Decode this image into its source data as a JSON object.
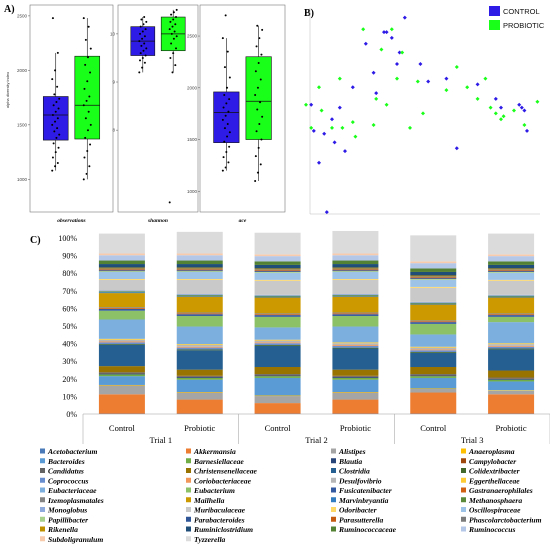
{
  "panel_labels": {
    "a": "A)",
    "b": "B)",
    "c": "C)"
  },
  "chart_data": [
    {
      "type": "box",
      "panel": "A",
      "ylabel": "alpha diversity index",
      "facets": [
        {
          "metric": "observations",
          "ylim": [
            700,
            2600
          ],
          "yticks": [
            1000,
            1500,
            2000,
            2500
          ],
          "groups": [
            {
              "name": "CONTROL",
              "color": "#2e1be6",
              "q1": 1360,
              "median": 1590,
              "q3": 1760,
              "whisker_low": 1080,
              "whisker_high": 2160,
              "points": [
                1080,
                1120,
                1150,
                1200,
                1250,
                1290,
                1330,
                1380,
                1410,
                1440,
                1470,
                1500,
                1530,
                1560,
                1590,
                1620,
                1650,
                1680,
                1710,
                1740,
                1780,
                1850,
                1920,
                2000,
                2160,
                2480
              ]
            },
            {
              "name": "PROBIOTIC",
              "color": "#1aff1a",
              "q1": 1370,
              "median": 1680,
              "q3": 2130,
              "whisker_low": 1000,
              "whisker_high": 2480,
              "points": [
                1000,
                1050,
                1120,
                1200,
                1260,
                1320,
                1380,
                1450,
                1500,
                1560,
                1620,
                1680,
                1720,
                1760,
                1830,
                1900,
                1980,
                2050,
                2120,
                2200,
                2280,
                2400,
                2480
              ]
            }
          ]
        },
        {
          "metric": "shannon",
          "ylim": [
            6.3,
            10.6
          ],
          "yticks": [
            8,
            9,
            10
          ],
          "groups": [
            {
              "name": "CONTROL",
              "color": "#2e1be6",
              "q1": 9.55,
              "median": 9.85,
              "q3": 10.15,
              "whisker_low": 9.2,
              "whisker_high": 10.35,
              "points": [
                9.2,
                9.3,
                9.4,
                9.45,
                9.5,
                9.55,
                9.6,
                9.65,
                9.7,
                9.75,
                9.8,
                9.85,
                9.9,
                9.95,
                10.0,
                10.05,
                10.1,
                10.15,
                10.2,
                10.25,
                10.3,
                10.35
              ]
            },
            {
              "name": "PROBIOTIC",
              "color": "#1aff1a",
              "q1": 9.65,
              "median": 10.0,
              "q3": 10.35,
              "whisker_low": 9.2,
              "whisker_high": 10.5,
              "points": [
                6.5,
                9.2,
                9.35,
                9.5,
                9.6,
                9.7,
                9.8,
                9.9,
                9.95,
                10.0,
                10.05,
                10.1,
                10.15,
                10.2,
                10.25,
                10.3,
                10.35,
                10.4,
                10.45,
                10.5
              ]
            }
          ]
        },
        {
          "metric": "ace",
          "ylim": [
            800,
            2800
          ],
          "yticks": [
            1000,
            1500,
            2000,
            2500
          ],
          "groups": [
            {
              "name": "CONTROL",
              "color": "#2e1be6",
              "q1": 1470,
              "median": 1760,
              "q3": 1960,
              "whisker_low": 1200,
              "whisker_high": 2480,
              "points": [
                1200,
                1230,
                1280,
                1330,
                1380,
                1430,
                1480,
                1530,
                1570,
                1610,
                1650,
                1690,
                1730,
                1770,
                1810,
                1850,
                1890,
                1930,
                2000,
                2100,
                2200,
                2350,
                2480,
                2700
              ]
            },
            {
              "name": "PROBIOTIC",
              "color": "#1aff1a",
              "q1": 1500,
              "median": 1870,
              "q3": 2300,
              "whisker_low": 1100,
              "whisker_high": 2600,
              "points": [
                1100,
                1180,
                1260,
                1340,
                1420,
                1500,
                1580,
                1650,
                1720,
                1790,
                1860,
                1930,
                2000,
                2080,
                2160,
                2240,
                2320,
                2400,
                2480,
                2560,
                2600
              ]
            }
          ]
        }
      ]
    },
    {
      "type": "scatter",
      "panel": "B",
      "xlim": [
        -0.4,
        0.5
      ],
      "ylim": [
        -0.4,
        0.32
      ],
      "legend": [
        {
          "name": "CONTROL",
          "color": "#2e1be6"
        },
        {
          "name": "PROBIOTIC",
          "color": "#1aff1a"
        }
      ],
      "series": [
        {
          "name": "CONTROL",
          "color": "#2e1be6",
          "marker": "diamond",
          "points": [
            [
              -0.38,
              -0.02
            ],
            [
              -0.37,
              -0.11
            ],
            [
              -0.35,
              -0.22
            ],
            [
              -0.33,
              -0.12
            ],
            [
              -0.32,
              -0.39
            ],
            [
              -0.3,
              -0.07
            ],
            [
              -0.29,
              -0.15
            ],
            [
              -0.27,
              -0.03
            ],
            [
              -0.25,
              -0.18
            ],
            [
              -0.22,
              0.04
            ],
            [
              -0.17,
              0.19
            ],
            [
              -0.14,
              0.09
            ],
            [
              -0.13,
              0.02
            ],
            [
              -0.1,
              0.23
            ],
            [
              -0.09,
              0.23
            ],
            [
              -0.07,
              0.21
            ],
            [
              -0.05,
              0.12
            ],
            [
              -0.04,
              0.16
            ],
            [
              -0.02,
              0.28
            ],
            [
              0.04,
              0.12
            ],
            [
              0.07,
              0.06
            ],
            [
              0.14,
              0.07
            ],
            [
              0.18,
              -0.17
            ],
            [
              0.26,
              0.05
            ],
            [
              0.33,
              0.0
            ],
            [
              0.35,
              -0.03
            ],
            [
              0.42,
              -0.02
            ],
            [
              0.43,
              -0.03
            ],
            [
              0.44,
              -0.04
            ],
            [
              0.45,
              -0.11
            ]
          ]
        },
        {
          "name": "PROBIOTIC",
          "color": "#1aff1a",
          "marker": "diamond",
          "points": [
            [
              -0.4,
              -0.02
            ],
            [
              -0.38,
              -0.1
            ],
            [
              -0.35,
              0.04
            ],
            [
              -0.34,
              -0.04
            ],
            [
              -0.3,
              -0.1
            ],
            [
              -0.27,
              0.07
            ],
            [
              -0.26,
              -0.1
            ],
            [
              -0.22,
              -0.08
            ],
            [
              -0.21,
              -0.13
            ],
            [
              -0.18,
              0.24
            ],
            [
              -0.14,
              -0.09
            ],
            [
              -0.13,
              0.0
            ],
            [
              -0.11,
              0.17
            ],
            [
              -0.09,
              -0.02
            ],
            [
              -0.07,
              0.24
            ],
            [
              -0.05,
              0.07
            ],
            [
              -0.03,
              0.16
            ],
            [
              0.0,
              -0.1
            ],
            [
              0.03,
              0.06
            ],
            [
              0.05,
              -0.05
            ],
            [
              0.14,
              0.03
            ],
            [
              0.18,
              0.11
            ],
            [
              0.22,
              0.04
            ],
            [
              0.26,
              0.0
            ],
            [
              0.29,
              0.07
            ],
            [
              0.31,
              -0.03
            ],
            [
              0.33,
              -0.05
            ],
            [
              0.35,
              -0.07
            ],
            [
              0.36,
              -0.06
            ],
            [
              0.4,
              -0.04
            ],
            [
              0.44,
              -0.09
            ],
            [
              0.49,
              -0.01
            ]
          ]
        }
      ]
    },
    {
      "type": "stacked_bar",
      "panel": "C",
      "ylim": [
        0,
        100
      ],
      "yticks": [
        "0%",
        "10%",
        "20%",
        "30%",
        "40%",
        "50%",
        "60%",
        "70%",
        "80%",
        "90%",
        "100%"
      ],
      "categories": [
        "Control",
        "Probiotic",
        "Control",
        "Probiotic",
        "Control",
        "Probiotic"
      ],
      "groups": [
        {
          "label": "Trial 1",
          "categories": [
            "Control",
            "Probiotic"
          ]
        },
        {
          "label": "Trial 2",
          "categories": [
            "Control",
            "Probiotic"
          ]
        },
        {
          "label": "Trial 3",
          "categories": [
            "Control",
            "Probiotic"
          ]
        }
      ],
      "series": [
        {
          "name": "Acetobacterium",
          "color": "#4a7ab8",
          "values": [
            0.2,
            0.2,
            0.2,
            0.2,
            0.2,
            0.2
          ]
        },
        {
          "name": "Akkermansia",
          "color": "#ed7d31",
          "values": [
            11,
            8,
            6,
            8,
            12,
            11
          ]
        },
        {
          "name": "Alistipes",
          "color": "#a5a5a5",
          "values": [
            5,
            4,
            4,
            4,
            2,
            2
          ]
        },
        {
          "name": "Anaeroplasma",
          "color": "#ffc000",
          "values": [
            0.3,
            0.3,
            0.3,
            0.3,
            0.3,
            0.3
          ]
        },
        {
          "name": "Bacteroides",
          "color": "#5b9bd5",
          "values": [
            5,
            7,
            10,
            7,
            6,
            5
          ]
        },
        {
          "name": "Barnesiellaceae",
          "color": "#70ad47",
          "values": [
            1,
            1,
            1,
            1,
            1,
            1
          ]
        },
        {
          "name": "Blautia",
          "color": "#264478",
          "values": [
            0.5,
            0.5,
            0.5,
            0.5,
            0.5,
            0.5
          ]
        },
        {
          "name": "Campylobacter",
          "color": "#9e480e",
          "values": [
            0.2,
            0.2,
            0.2,
            0.2,
            0.2,
            0.2
          ]
        },
        {
          "name": "Candidatus",
          "color": "#636363",
          "values": [
            0.5,
            0.5,
            0.5,
            0.5,
            0.5,
            0.5
          ]
        },
        {
          "name": "Christensenellaceae",
          "color": "#997300",
          "values": [
            3.5,
            3.5,
            4,
            3.5,
            4,
            4
          ]
        },
        {
          "name": "Clostridia",
          "color": "#255e91",
          "values": [
            12,
            11,
            12,
            12,
            8,
            12
          ]
        },
        {
          "name": "Colidextribacter",
          "color": "#43682b",
          "values": [
            0.5,
            0.5,
            0.5,
            0.5,
            0.5,
            0.5
          ]
        },
        {
          "name": "Coprococcus",
          "color": "#698ed0",
          "values": [
            1,
            1,
            1,
            1,
            1,
            1
          ]
        },
        {
          "name": "Coriobacteriaceae",
          "color": "#f1975a",
          "values": [
            0.5,
            0.5,
            0.5,
            0.5,
            0.5,
            0.5
          ]
        },
        {
          "name": "Desulfovibrio",
          "color": "#b7b7b7",
          "values": [
            1,
            1,
            1,
            1,
            1,
            1
          ]
        },
        {
          "name": "Eggerthellaceae",
          "color": "#ffcd33",
          "values": [
            0.5,
            0.5,
            0.5,
            0.5,
            0.5,
            0.5
          ]
        },
        {
          "name": "Eubacteriaceae",
          "color": "#7cafdd",
          "values": [
            11,
            10,
            7,
            9,
            7,
            12
          ]
        },
        {
          "name": "Eubacterium",
          "color": "#8cc168",
          "values": [
            5,
            6,
            6,
            6,
            6,
            3
          ]
        },
        {
          "name": "Fusicatenibacter",
          "color": "#335aa1",
          "values": [
            1,
            1,
            1,
            1,
            1,
            1
          ]
        },
        {
          "name": "Gastranaerophilales",
          "color": "#d26012",
          "values": [
            0.5,
            0.5,
            0.5,
            0.5,
            0.5,
            0.5
          ]
        },
        {
          "name": "Izemoplasmatales",
          "color": "#848484",
          "values": [
            0.5,
            0.5,
            0.5,
            0.5,
            0.5,
            0.5
          ]
        },
        {
          "name": "Mailhella",
          "color": "#cc9a00",
          "values": [
            8,
            9,
            9,
            9,
            9,
            9
          ]
        },
        {
          "name": "Marvinbryantia",
          "color": "#327dc2",
          "values": [
            0.5,
            0.5,
            0.5,
            0.5,
            0.5,
            0.5
          ]
        },
        {
          "name": "Methanosphaera",
          "color": "#5a8a39",
          "values": [
            0.5,
            0.5,
            0.5,
            0.5,
            0.5,
            0.5
          ]
        },
        {
          "name": "Monoglobus",
          "color": "#8faadc",
          "values": [
            0.5,
            0.5,
            0.5,
            0.5,
            0.5,
            0.5
          ]
        },
        {
          "name": "Muribaculaceae",
          "color": "#c9c9c9",
          "values": [
            6,
            8,
            8,
            8,
            8,
            8
          ]
        },
        {
          "name": "Odoribacter",
          "color": "#ffd966",
          "values": [
            0.5,
            0.5,
            0.5,
            0.5,
            0.5,
            0.5
          ]
        },
        {
          "name": "Oscillospiraceae",
          "color": "#9dc3e6",
          "values": [
            4,
            4,
            4,
            4,
            4,
            4
          ]
        },
        {
          "name": "Papillibacter",
          "color": "#a9d18e",
          "values": [
            0.5,
            0.5,
            0.5,
            0.5,
            0.5,
            0.5
          ]
        },
        {
          "name": "Parabacteroides",
          "color": "#2f5597",
          "values": [
            0.5,
            0.5,
            0.5,
            0.5,
            0.5,
            0.5
          ]
        },
        {
          "name": "Parasutterella",
          "color": "#c55a11",
          "values": [
            0.5,
            0.5,
            0.5,
            0.5,
            0.5,
            0.5
          ]
        },
        {
          "name": "Phascolarctobacterium",
          "color": "#7b7b7b",
          "values": [
            0.5,
            0.5,
            0.5,
            0.5,
            0.5,
            0.5
          ]
        },
        {
          "name": "Rikenella",
          "color": "#bf9000",
          "values": [
            0.5,
            0.5,
            0.5,
            0.5,
            0.5,
            0.5
          ]
        },
        {
          "name": "Ruminiclostridium",
          "color": "#1f4e79",
          "values": [
            2,
            2,
            2,
            2,
            2,
            2
          ]
        },
        {
          "name": "Ruminococcaceae",
          "color": "#548235",
          "values": [
            2,
            2,
            2,
            2,
            2,
            2
          ]
        },
        {
          "name": "Ruminococcus",
          "color": "#b4c7e7",
          "values": [
            3,
            3,
            3,
            3,
            3,
            3
          ]
        },
        {
          "name": "Subdoligranulum",
          "color": "#f8cbad",
          "values": [
            1,
            1,
            1,
            1,
            1,
            1
          ]
        },
        {
          "name": "Tyzzerella",
          "color": "#dbdbdb",
          "values": [
            11.3,
            12.3,
            12.3,
            12.8,
            14.8,
            11.8
          ]
        }
      ]
    }
  ]
}
